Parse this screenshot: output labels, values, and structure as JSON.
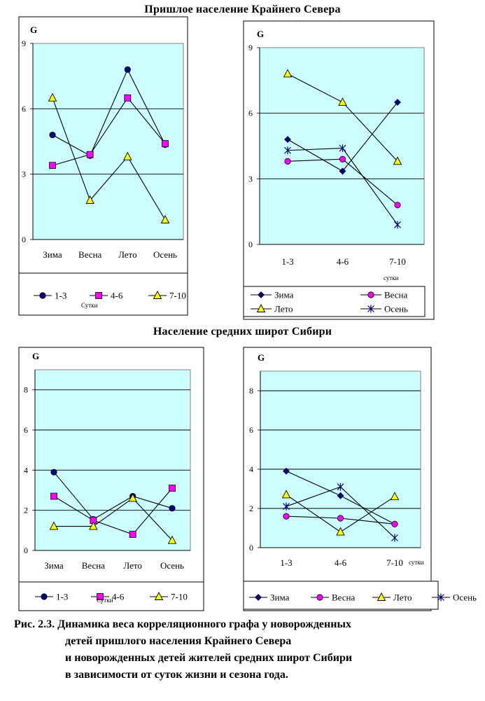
{
  "section_titles": {
    "top": "Пришлое население Крайнего Севера",
    "bottom": "Население средних широт Сибири"
  },
  "caption": {
    "line1": "Рис. 2.3. Динамика веса корреляционного графа у новорожденных",
    "line2": "детей пришлого населения Крайнего Севера",
    "line3": "и новорожденных детей жителей средних широт Сибири",
    "line4": "в зависимости от суток жизни и сезона года."
  },
  "colors": {
    "plot_bg": "#ccffff",
    "navy": "#000080",
    "magenta": "#ff00ff",
    "yellow": "#ffff00"
  },
  "chart_data": [
    {
      "type": "line",
      "ylabel": "G",
      "categories": [
        "Зима",
        "Весна",
        "Лето",
        "Осень"
      ],
      "yticks": [
        "0",
        "3",
        "6",
        "9"
      ],
      "ylim": [
        0,
        9
      ],
      "grid": true,
      "legend_title": "Сутки",
      "legend_position": "bottom",
      "series": [
        {
          "name": "1-3",
          "marker": "circle",
          "color": "#000080",
          "values": [
            4.8,
            3.85,
            7.8,
            4.35
          ]
        },
        {
          "name": "4-6",
          "marker": "square",
          "color": "#ff00ff",
          "values": [
            3.4,
            3.9,
            6.5,
            4.4
          ]
        },
        {
          "name": "7-10",
          "marker": "triangle",
          "color": "#ffff00",
          "values": [
            6.5,
            1.8,
            3.8,
            0.9
          ]
        }
      ]
    },
    {
      "type": "line",
      "ylabel": "G",
      "categories": [
        "1-3",
        "4-6",
        "7-10"
      ],
      "yticks": [
        "0",
        "3",
        "6",
        "9"
      ],
      "ylim": [
        0,
        9
      ],
      "grid": true,
      "xunit": "сутки",
      "legend_position": "bottom",
      "series": [
        {
          "name": "Зима",
          "marker": "diamond",
          "color": "#000080",
          "values": [
            4.8,
            3.35,
            6.5
          ]
        },
        {
          "name": "Весна",
          "marker": "circle",
          "color": "#ff00ff",
          "values": [
            3.8,
            3.9,
            1.8
          ]
        },
        {
          "name": "Лето",
          "marker": "triangle",
          "color": "#ffff00",
          "values": [
            7.8,
            6.5,
            3.8
          ]
        },
        {
          "name": "Осень",
          "marker": "star",
          "color": "#000080",
          "values": [
            4.3,
            4.4,
            0.9
          ]
        }
      ]
    },
    {
      "type": "line",
      "ylabel": "G",
      "categories": [
        "Зима",
        "Весна",
        "Лето",
        "Осень"
      ],
      "yticks": [
        "0",
        "2",
        "4",
        "6",
        "8"
      ],
      "ylim": [
        0,
        9
      ],
      "grid": true,
      "legend_title": "Сутки",
      "legend_position": "bottom",
      "series": [
        {
          "name": "1-3",
          "marker": "circle",
          "color": "#000080",
          "values": [
            3.9,
            1.55,
            2.7,
            2.1
          ]
        },
        {
          "name": "4-6",
          "marker": "square",
          "color": "#ff00ff",
          "values": [
            2.7,
            1.5,
            0.8,
            3.1
          ]
        },
        {
          "name": "7-10",
          "marker": "triangle",
          "color": "#ffff00",
          "values": [
            1.2,
            1.2,
            2.6,
            0.5
          ]
        }
      ]
    },
    {
      "type": "line",
      "ylabel": "G",
      "categories": [
        "1-3",
        "4-6",
        "7-10"
      ],
      "yticks": [
        "0",
        "2",
        "4",
        "6",
        "8"
      ],
      "ylim": [
        0,
        9
      ],
      "grid": true,
      "xunit": "сутки",
      "legend_position": "bottom",
      "series": [
        {
          "name": "Зима",
          "marker": "diamond",
          "color": "#000080",
          "values": [
            3.9,
            2.65,
            1.2
          ]
        },
        {
          "name": "Весна",
          "marker": "circle",
          "color": "#ff00ff",
          "values": [
            1.6,
            1.5,
            1.2
          ]
        },
        {
          "name": "Лето",
          "marker": "triangle",
          "color": "#ffff00",
          "values": [
            2.7,
            0.8,
            2.6
          ]
        },
        {
          "name": "Осень",
          "marker": "star",
          "color": "#000080",
          "values": [
            2.1,
            3.1,
            0.5
          ]
        }
      ]
    }
  ]
}
